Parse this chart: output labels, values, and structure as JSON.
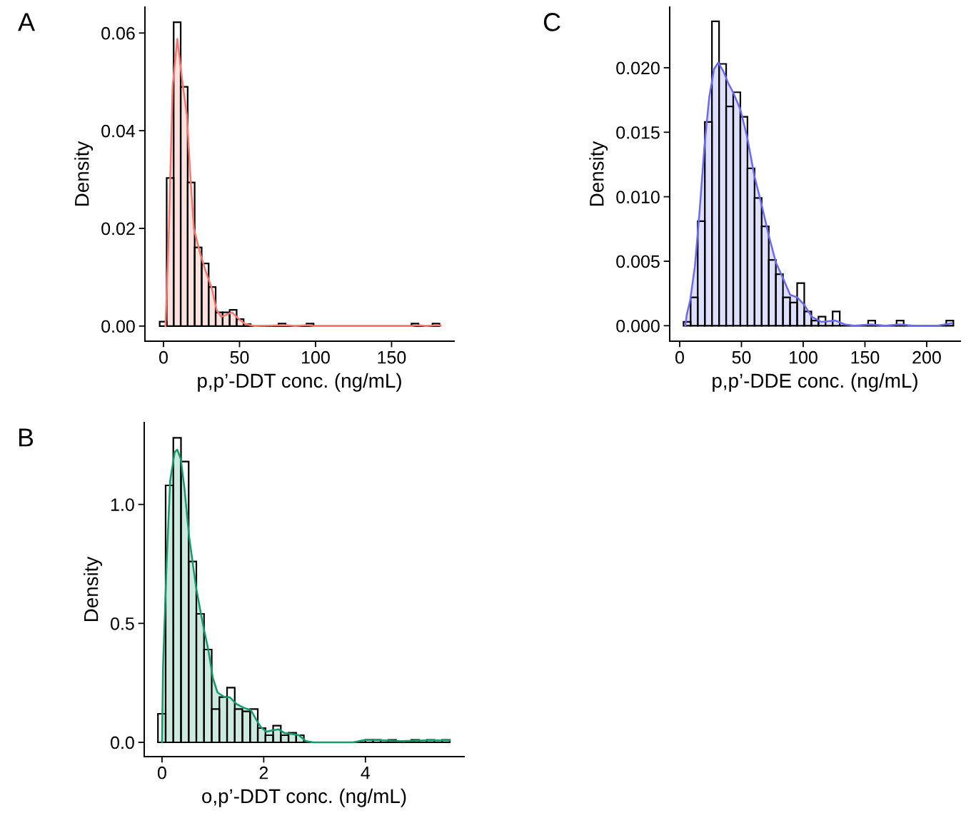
{
  "chart_data": [
    {
      "type": "histogram",
      "title": "A",
      "xlabel": "p,p’-DDT conc. (ng/mL)",
      "ylabel": "Density",
      "color": "#000000",
      "bins": [
        -2.5,
        2.1,
        6.7,
        11.3,
        15.9,
        20.5,
        25.1,
        29.7,
        34.3,
        38.9,
        43.5,
        48.1,
        52.7,
        57.3,
        61.9,
        66.5,
        71.1,
        75.7,
        80.3,
        84.9,
        89.5,
        94.1,
        98.7,
        103.3,
        107.9,
        112.5,
        117.1,
        121.7,
        126.3,
        130.9,
        135.5,
        140.1,
        144.7,
        149.3,
        153.9,
        158.5,
        163.1,
        167.7,
        172.3,
        176.9,
        181.5
      ],
      "values": [
        0.0009,
        0.0303,
        0.0622,
        0.049,
        0.0294,
        0.0161,
        0.0128,
        0.008,
        0.0028,
        0.0028,
        0.0033,
        0.0014,
        0.0004,
        0,
        0,
        0,
        0,
        0.0005,
        0,
        0,
        0,
        0.0005,
        0,
        0,
        0,
        0,
        0,
        0,
        0,
        0,
        0,
        0,
        0,
        0,
        0,
        0,
        0.0005,
        0,
        0,
        0.0005
      ],
      "series": [
        {
          "type": "area",
          "color": "#f8766d",
          "x": [
            1.3,
            3.6,
            6.0,
            9.1,
            12.2,
            15.4,
            17.7,
            20.0,
            24.0,
            27.9,
            31.8,
            34.9,
            38.0,
            45.1,
            49.0,
            53.7,
            60.0,
            80.3,
            86.6,
            94.4,
            99.1,
            163.2,
            167.2,
            172.6,
            180.4,
            182.3
          ],
          "values": [
            0,
            0.0199,
            0.0491,
            0.0588,
            0.0505,
            0.0432,
            0.0306,
            0.0199,
            0.015,
            0.0111,
            0.0077,
            0.0033,
            0.0019,
            0.0028,
            0.0016,
            0.0004,
            0,
            0.0002,
            0,
            0.0002,
            0,
            0,
            0.0002,
            0,
            0.0002,
            0.0001
          ]
        }
      ],
      "xlim": [
        -12.2,
        191.1
      ],
      "ylim": [
        -0.0031,
        0.0653
      ],
      "xticks": [
        0,
        50,
        100,
        150
      ],
      "yticks": [
        {
          "value": 0,
          "label": "0.00"
        },
        {
          "value": 0.02,
          "label": "0.02"
        },
        {
          "value": 0.04,
          "label": "0.04"
        },
        {
          "value": 0.06,
          "label": "0.06"
        }
      ],
      "grid": false
    },
    {
      "type": "histogram",
      "title": "C",
      "xlabel": "p,p’-DDE conc. (ng/mL)",
      "ylabel": "Density",
      "color": "#000000",
      "bins": [
        3.1,
        8.85,
        14.6,
        20.35,
        26.1,
        31.85,
        37.6,
        43.35,
        49.1,
        54.85,
        60.6,
        66.35,
        72.1,
        77.85,
        83.6,
        89.35,
        95.1,
        100.85,
        106.6,
        112.35,
        118.1,
        123.85,
        129.6,
        135.35,
        141.1,
        146.85,
        152.6,
        158.35,
        164.1,
        169.85,
        175.6,
        181.35,
        187.1,
        192.85,
        198.6,
        204.35,
        210.1,
        215.85,
        221.6
      ],
      "values": [
        0.0003,
        0.0022,
        0.0081,
        0.0158,
        0.0236,
        0.0203,
        0.017,
        0.0181,
        0.0162,
        0.0122,
        0.0099,
        0.0077,
        0.0051,
        0.004,
        0.0022,
        0.0018,
        0.0033,
        0.0011,
        0.0004,
        0.0007,
        0,
        0.0011,
        0,
        0,
        0,
        0,
        0.0004,
        0,
        0,
        0,
        0.0004,
        0,
        0,
        0,
        0,
        0,
        0,
        0.0004
      ],
      "series": [
        {
          "type": "area",
          "color": "#6a6af5",
          "x": [
            4.6,
            5.6,
            8.5,
            12.3,
            16.2,
            20.1,
            23.9,
            27.8,
            31.2,
            35.5,
            39.3,
            43.2,
            49.0,
            54.7,
            60.5,
            66.3,
            72.1,
            77.9,
            83.6,
            89.4,
            95.2,
            101.0,
            106.8,
            114.5,
            126.0,
            133.7,
            141.4,
            154.9,
            166.5,
            178.1,
            189.6,
            208.9,
            220.4
          ],
          "values": [
            0,
            0.0008,
            0.002,
            0.0046,
            0.009,
            0.014,
            0.0177,
            0.0199,
            0.0204,
            0.0197,
            0.0188,
            0.0181,
            0.0168,
            0.0146,
            0.0116,
            0.0094,
            0.007,
            0.0049,
            0.0037,
            0.0024,
            0.0022,
            0.0016,
            0.0007,
            0.0003,
            0.0004,
            0.0001,
            0,
            0.0001,
            0,
            0.0001,
            0,
            0,
            0.0002
          ]
        }
      ],
      "xlim": [
        -8.1,
        227.2
      ],
      "ylim": [
        -0.0012,
        0.0247
      ],
      "xticks": [
        0,
        50,
        100,
        150,
        200
      ],
      "yticks": [
        {
          "value": 0,
          "label": "0.000"
        },
        {
          "value": 0.005,
          "label": "0.005"
        },
        {
          "value": 0.01,
          "label": "0.010"
        },
        {
          "value": 0.015,
          "label": "0.015"
        },
        {
          "value": 0.02,
          "label": "0.020"
        }
      ],
      "grid": false
    },
    {
      "type": "histogram",
      "title": "B",
      "xlabel": "o,p’-DDT conc. (ng/mL)",
      "ylabel": "Density",
      "color": "#000000",
      "bins": [
        -0.08,
        0.071,
        0.222,
        0.373,
        0.524,
        0.675,
        0.826,
        0.977,
        1.128,
        1.279,
        1.43,
        1.581,
        1.732,
        1.883,
        2.034,
        2.185,
        2.336,
        2.487,
        2.638,
        2.789,
        2.94,
        3.091,
        3.242,
        3.393,
        3.544,
        3.695,
        3.846,
        3.997,
        4.148,
        4.299,
        4.45,
        4.601,
        4.752,
        4.903,
        5.054,
        5.205,
        5.356,
        5.507,
        5.658
      ],
      "values": [
        0.12,
        1.08,
        1.28,
        1.18,
        0.76,
        0.54,
        0.39,
        0.14,
        0.19,
        0.23,
        0.14,
        0.13,
        0.14,
        0.06,
        0.03,
        0.07,
        0.03,
        0.04,
        0.03,
        0,
        0,
        0,
        0,
        0,
        0,
        0,
        0,
        0.01,
        0.01,
        0,
        0.01,
        0,
        0,
        0.01,
        0,
        0.01,
        0,
        0.01
      ],
      "series": [
        {
          "type": "area",
          "color": "#139a6a",
          "x": [
            0.0,
            0.02,
            0.09,
            0.16,
            0.25,
            0.3,
            0.37,
            0.44,
            0.53,
            0.67,
            0.81,
            0.91,
            1.0,
            1.09,
            1.23,
            1.33,
            1.47,
            1.61,
            1.75,
            1.84,
            1.94,
            2.05,
            2.17,
            2.29,
            2.4,
            2.55,
            2.69,
            2.83,
            2.97,
            3.76,
            3.99,
            4.23,
            4.7,
            5.17,
            5.66
          ],
          "values": [
            0,
            0.32,
            0.75,
            1.1,
            1.22,
            1.23,
            1.19,
            1.07,
            0.87,
            0.65,
            0.49,
            0.39,
            0.27,
            0.21,
            0.19,
            0.19,
            0.16,
            0.145,
            0.135,
            0.1,
            0.065,
            0.045,
            0.05,
            0.055,
            0.04,
            0.035,
            0.03,
            0.005,
            0,
            0,
            0.01,
            0.01,
            0.005,
            0.008,
            0.008
          ]
        }
      ],
      "xlim": [
        -0.35,
        5.94
      ],
      "ylim": [
        -0.06,
        1.344
      ],
      "xticks": [
        0,
        2,
        4
      ],
      "yticks": [
        {
          "value": 0,
          "label": "0.0"
        },
        {
          "value": 0.5,
          "label": "0.5"
        },
        {
          "value": 1,
          "label": "1.0"
        }
      ],
      "grid": false
    }
  ]
}
